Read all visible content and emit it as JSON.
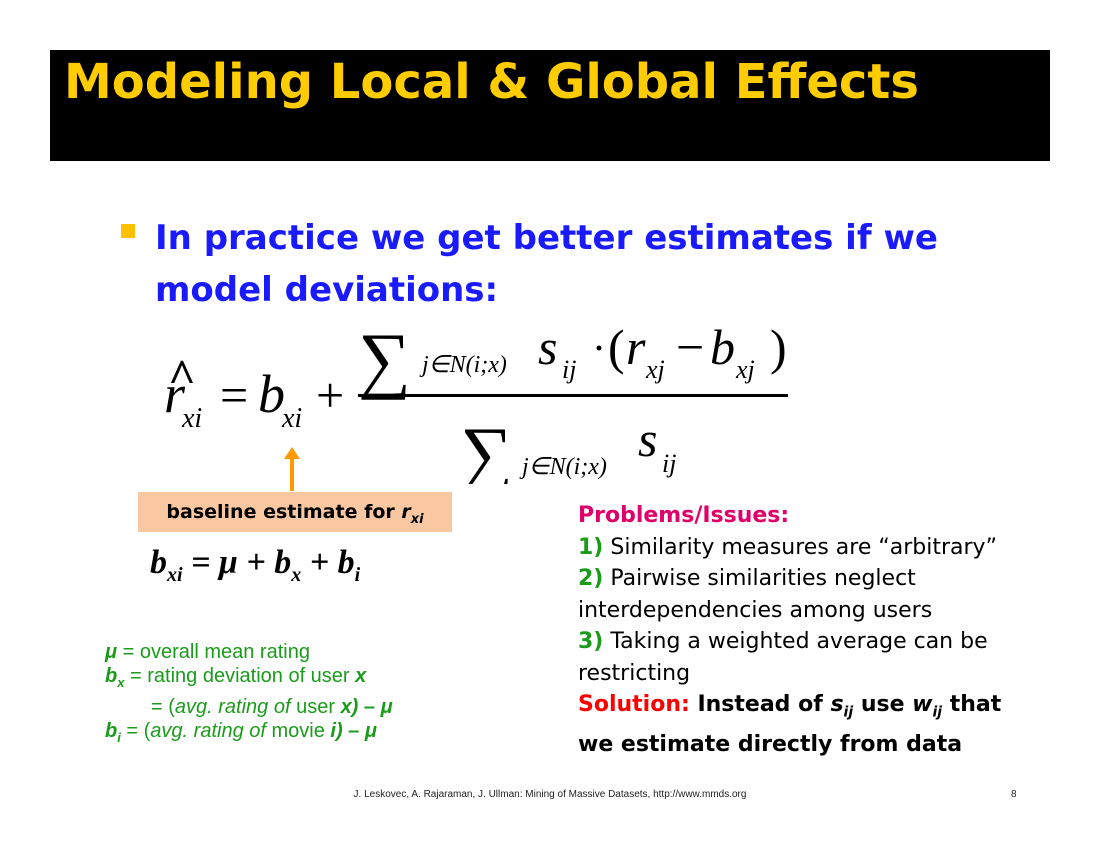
{
  "colors": {
    "title_bar": "#000000",
    "title_text": "#ffcc00",
    "bullet": "#ffc000",
    "bullet_text": "#1a1aff",
    "arrow": "#ff9900",
    "baseline_box": "#f9c8a3",
    "legend_text": "#1a9c1a",
    "problems_heading": "#e0006a",
    "numbering": "#1a9c1a",
    "solution_label": "#ff0000"
  },
  "title": "Modeling Local & Global Effects",
  "bullet": {
    "icon": "square-bullet-icon",
    "line1": "In practice we get better estimates if we",
    "line2": "model deviations:"
  },
  "formula": {
    "lhs_hat": "^",
    "lhs_var": "r",
    "lhs_sub": "xi",
    "equals": "=",
    "b": "b",
    "b_sub": "xi",
    "plus": "+",
    "sum": "∑",
    "sum_index": "j∈N(i;x)",
    "s": "s",
    "s_sub": "ij",
    "dot": "·",
    "open_paren": "(",
    "r": "r",
    "r_sub": "xj",
    "minus": "−",
    "b2": "b",
    "b2_sub": "xj",
    "close_paren": ")"
  },
  "baseline": {
    "label": "baseline estimate for ",
    "var": "r",
    "var_sub": "xi"
  },
  "bformula": {
    "b": "b",
    "b_sub": "xi",
    "rest1": " = μ + ",
    "bx": "b",
    "bx_sub": "x",
    "rest2": " + ",
    "bi": "b",
    "bi_sub": "i"
  },
  "legend": {
    "mu_sym": "μ",
    "mu_def": "  =  overall mean rating",
    "bx_sym": "b",
    "bx_sub": "x",
    "bx_def1": "  =  rating deviation of user ",
    "bx_def_var": "x",
    "bx_line2_a": "= (",
    "bx_line2_b": "avg. rating of",
    "bx_line2_c": " user ",
    "bx_line2_d": "x) – μ",
    "bi_sym": "b",
    "bi_sub": "i",
    "bi_def_a": "  = (",
    "bi_def_b": "avg. rating of",
    "bi_def_c": " movie ",
    "bi_def_d": "i) – μ"
  },
  "problems": {
    "heading": "Problems/Issues:",
    "item1_num": "1)",
    "item1_text": " Similarity measures are “arbitrary”",
    "item2_num": "2)",
    "item2_text_a": " Pairwise similarities neglect",
    "item2_text_b": "interdependencies among users",
    "item3_num": "3)",
    "item3_text_a": " Taking a weighted average can be",
    "item3_text_b": "restricting",
    "solution_label": "Solution:",
    "solution_a": " Instead of ",
    "solution_s": "s",
    "solution_s_sub": "ij",
    "solution_b": " use ",
    "solution_w": "w",
    "solution_w_sub": "ij",
    "solution_c": " that",
    "solution_line2": "we estimate directly from data"
  },
  "footer": "J. Leskovec, A. Rajaraman, J. Ullman: Mining of Massive Datasets, http://www.mmds.org",
  "page_number": "8"
}
